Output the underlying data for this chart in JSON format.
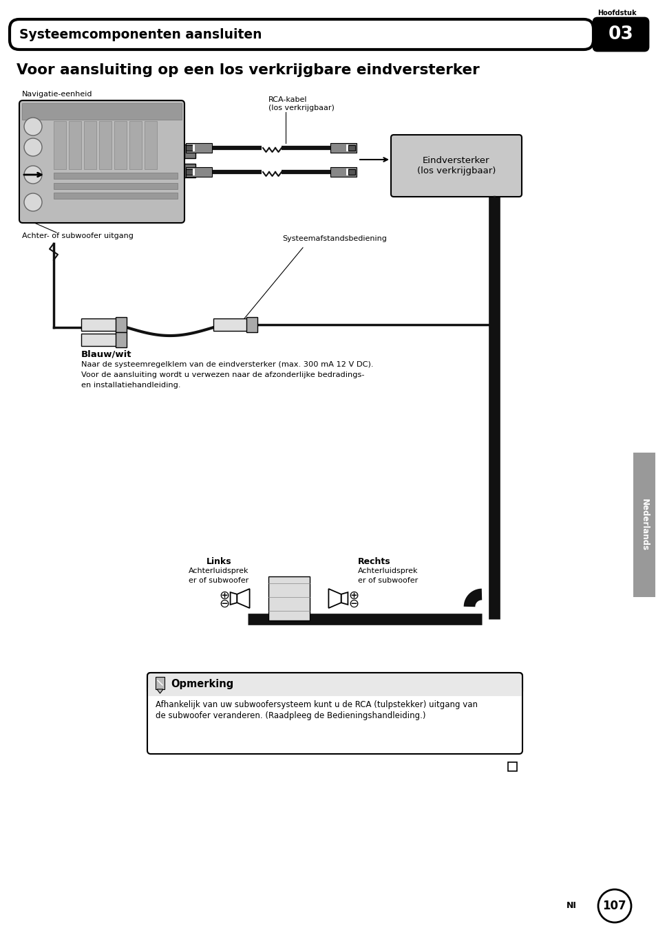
{
  "page_title": "Voor aansluiting op een los verkrijgbare eindversterker",
  "header_text": "Systeemcomponenten aansluiten",
  "chapter_num": "03",
  "hoofdstuk_label": "Hoofdstuk",
  "page_num": "107",
  "page_lang": "NI",
  "sidebar_text": "Nederlands",
  "label_navigatie": "Navigatie-eenheid",
  "label_rca": "RCA-kabel\n(los verkrijgbaar)",
  "label_eindversterker": "Eindversterker\n(los verkrijgbaar)",
  "label_achter": "Achter- of subwoofer uitgang",
  "label_systeemafstand": "Systeemafstandsbediening",
  "label_blauwwit": "Blauw/wit",
  "label_blauwwit_line1": "Naar de systeemregelklem van de eindversterker (max. 300 mA 12 V DC).",
  "label_blauwwit_line2": "Voor de aansluiting wordt u verwezen naar de afzonderlijke bedradings-",
  "label_blauwwit_line3": "en installatiehandleiding.",
  "label_links": "Links",
  "label_links_sub1": "Achterluidsprek",
  "label_links_sub2": "er of subwoofer",
  "label_rechts": "Rechts",
  "label_rechts_sub1": "Achterluidsprek",
  "label_rechts_sub2": "er of subwoofer",
  "opmerking_title": "Opmerking",
  "opmerking_line1": "Afhankelijk van uw subwoofersysteem kunt u de RCA (tulpstekker) uitgang van",
  "opmerking_line2": "de subwoofer veranderen. (Raadpleeg de Bedieningshandleiding.)",
  "bg_color": "#ffffff",
  "nav_fill": "#b8b8b8",
  "ev_fill": "#c8c8c8",
  "cable_color": "#111111",
  "sidebar_fill": "#999999"
}
